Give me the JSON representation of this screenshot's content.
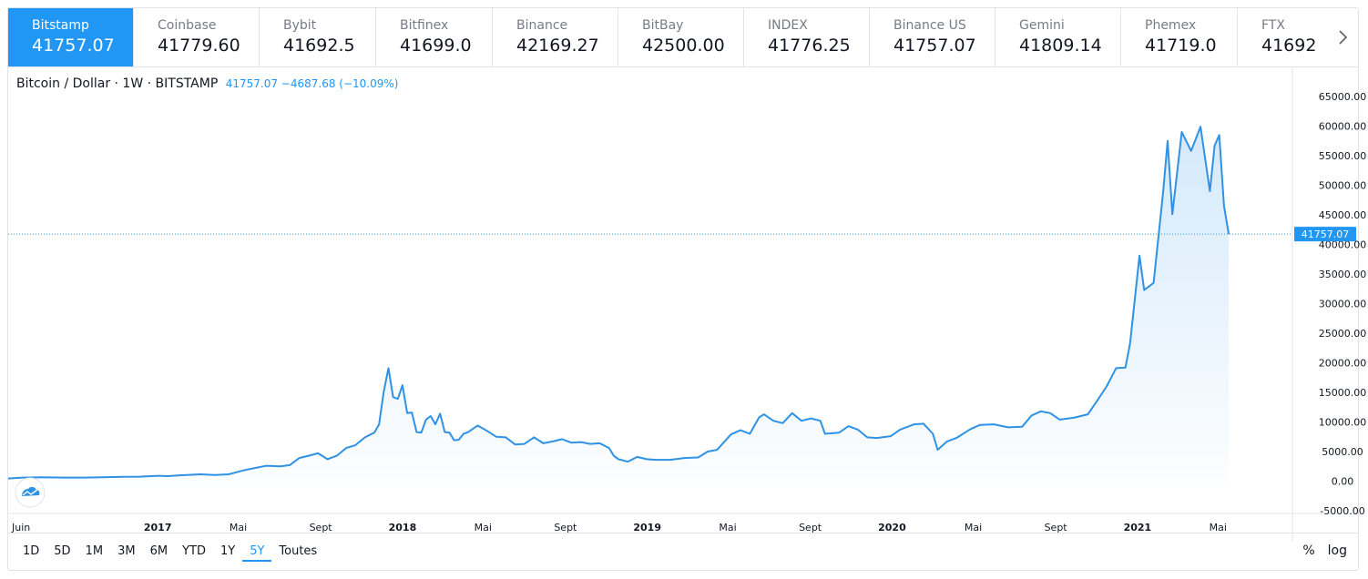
{
  "tabs": [
    {
      "name": "Bitstamp",
      "value": "41757.07",
      "active": true
    },
    {
      "name": "Coinbase",
      "value": "41779.60"
    },
    {
      "name": "Bybit",
      "value": "41692.5"
    },
    {
      "name": "Bitfinex",
      "value": "41699.0"
    },
    {
      "name": "Binance",
      "value": "42169.27"
    },
    {
      "name": "BitBay",
      "value": "42500.00"
    },
    {
      "name": "INDEX",
      "value": "41776.25"
    },
    {
      "name": "Binance US",
      "value": "41757.07"
    },
    {
      "name": "Gemini",
      "value": "41809.14"
    },
    {
      "name": "Phemex",
      "value": "41719.0"
    },
    {
      "name": "FTX",
      "value": "41692"
    }
  ],
  "next_icon": "chevron-right-icon",
  "logo_icon": "tradingview-cloud-icon",
  "legend": {
    "symbol": "Bitcoin / Dollar · 1W · BITSTAMP",
    "values": "41757.07 −4687.68 (−10.09%)"
  },
  "ranges": [
    "1D",
    "5D",
    "1M",
    "3M",
    "6M",
    "YTD",
    "1Y",
    "5Y",
    "Toutes"
  ],
  "active_range": "5Y",
  "scale_buttons": {
    "percent": "%",
    "log": "log"
  },
  "colors": {
    "accent": "#2196f3",
    "line": "#2f92e4",
    "fill": "#d2e8fb",
    "text": "#131722",
    "axis": "#131722",
    "border": "#e0e3eb"
  },
  "chart_data": {
    "type": "area",
    "title": "",
    "xlabel": "",
    "ylabel": "",
    "ylim": [
      -5000,
      66000
    ],
    "x_range": [
      "2016-05-23",
      "2021-08-20"
    ],
    "grid": false,
    "last_value": 41757.07,
    "last_value_label": "41757.07",
    "y_ticks": [
      -5000,
      0,
      5000,
      10000,
      15000,
      20000,
      25000,
      30000,
      35000,
      40000,
      45000,
      50000,
      55000,
      60000,
      65000
    ],
    "y_tick_labels": [
      "-5000.00",
      "0.00",
      "5000.00",
      "10000.00",
      "15000.00",
      "20000.00",
      "25000.00",
      "30000.00",
      "35000.00",
      "40000.00",
      "45000.00",
      "50000.00",
      "55000.00",
      "60000.00",
      "65000.00"
    ],
    "x_ticks": [
      {
        "label": "Juin",
        "date": "2016-06-01"
      },
      {
        "label": "2017",
        "date": "2017-01-01"
      },
      {
        "label": "Mai",
        "date": "2017-05-01"
      },
      {
        "label": "Sept",
        "date": "2017-09-01"
      },
      {
        "label": "2018",
        "date": "2018-01-01"
      },
      {
        "label": "Mai",
        "date": "2018-05-01"
      },
      {
        "label": "Sept",
        "date": "2018-09-01"
      },
      {
        "label": "2019",
        "date": "2019-01-01"
      },
      {
        "label": "Mai",
        "date": "2019-05-01"
      },
      {
        "label": "Sept",
        "date": "2019-09-01"
      },
      {
        "label": "2020",
        "date": "2020-01-01"
      },
      {
        "label": "Mai",
        "date": "2020-05-01"
      },
      {
        "label": "Sept",
        "date": "2020-09-01"
      },
      {
        "label": "2021",
        "date": "2021-01-01"
      },
      {
        "label": "Mai",
        "date": "2021-05-01"
      }
    ],
    "series": [
      {
        "x": [
          "2016-05-23",
          "2016-06-13",
          "2016-07-11",
          "2016-08-15",
          "2016-09-12",
          "2016-10-10",
          "2016-11-07",
          "2016-12-05",
          "2017-01-02",
          "2017-01-16",
          "2017-02-06",
          "2017-03-06",
          "2017-03-27",
          "2017-04-17",
          "2017-05-08",
          "2017-05-29",
          "2017-06-12",
          "2017-07-03",
          "2017-07-17",
          "2017-07-31",
          "2017-08-14",
          "2017-08-28",
          "2017-09-11",
          "2017-09-25",
          "2017-10-09",
          "2017-10-23",
          "2017-11-06",
          "2017-11-20",
          "2017-11-27",
          "2017-12-04",
          "2017-12-11",
          "2017-12-18",
          "2017-12-25",
          "2018-01-01",
          "2018-01-08",
          "2018-01-15",
          "2018-01-22",
          "2018-01-29",
          "2018-02-05",
          "2018-02-12",
          "2018-02-19",
          "2018-02-26",
          "2018-03-05",
          "2018-03-12",
          "2018-03-19",
          "2018-03-26",
          "2018-04-02",
          "2018-04-09",
          "2018-04-23",
          "2018-05-07",
          "2018-05-21",
          "2018-06-04",
          "2018-06-18",
          "2018-07-02",
          "2018-07-16",
          "2018-07-30",
          "2018-08-13",
          "2018-08-27",
          "2018-09-10",
          "2018-09-24",
          "2018-10-08",
          "2018-10-22",
          "2018-11-05",
          "2018-11-12",
          "2018-11-19",
          "2018-12-03",
          "2018-12-17",
          "2018-12-31",
          "2019-01-14",
          "2019-02-04",
          "2019-02-25",
          "2019-03-18",
          "2019-04-01",
          "2019-04-15",
          "2019-05-06",
          "2019-05-20",
          "2019-06-03",
          "2019-06-17",
          "2019-06-24",
          "2019-07-08",
          "2019-07-22",
          "2019-08-05",
          "2019-08-19",
          "2019-09-02",
          "2019-09-16",
          "2019-09-23",
          "2019-10-14",
          "2019-10-28",
          "2019-11-11",
          "2019-11-25",
          "2019-12-09",
          "2019-12-30",
          "2020-01-13",
          "2020-02-03",
          "2020-02-17",
          "2020-03-02",
          "2020-03-09",
          "2020-03-23",
          "2020-04-06",
          "2020-04-27",
          "2020-05-11",
          "2020-06-01",
          "2020-06-22",
          "2020-07-13",
          "2020-07-27",
          "2020-08-10",
          "2020-08-24",
          "2020-09-07",
          "2020-09-28",
          "2020-10-19",
          "2020-11-02",
          "2020-11-16",
          "2020-11-30",
          "2020-12-14",
          "2020-12-21",
          "2021-01-04",
          "2021-01-11",
          "2021-01-25",
          "2021-02-08",
          "2021-02-15",
          "2021-02-22",
          "2021-03-08",
          "2021-03-22",
          "2021-04-05",
          "2021-04-19",
          "2021-04-26",
          "2021-05-03",
          "2021-05-10",
          "2021-05-17"
        ],
        "y": [
          450,
          600,
          650,
          600,
          600,
          640,
          720,
          750,
          900,
          850,
          1000,
          1150,
          1050,
          1150,
          1800,
          2300,
          2600,
          2500,
          2700,
          3900,
          4300,
          4700,
          3700,
          4300,
          5600,
          6100,
          7400,
          8200,
          9600,
          15100,
          19100,
          14200,
          13900,
          16200,
          11500,
          11600,
          8300,
          8200,
          10400,
          11000,
          9600,
          11400,
          8300,
          8200,
          6900,
          7000,
          8000,
          8300,
          9400,
          8500,
          7500,
          7400,
          6200,
          6300,
          7400,
          6400,
          6700,
          7100,
          6500,
          6600,
          6300,
          6400,
          5600,
          4300,
          3700,
          3300,
          4100,
          3700,
          3600,
          3600,
          3900,
          4000,
          5000,
          5300,
          7900,
          8600,
          8000,
          10800,
          11300,
          10200,
          9800,
          11500,
          10200,
          10600,
          10200,
          8000,
          8200,
          9300,
          8700,
          7400,
          7300,
          7600,
          8700,
          9600,
          9700,
          8000,
          5300,
          6700,
          7300,
          8800,
          9500,
          9600,
          9100,
          9200,
          11100,
          11800,
          11500,
          10400,
          10700,
          11300,
          13600,
          16000,
          19100,
          19200,
          23300,
          38100,
          32300,
          33500,
          48600,
          57500,
          45100,
          59000,
          55800,
          59900,
          49000,
          56700,
          58500,
          46500,
          41757.07
        ]
      }
    ]
  }
}
